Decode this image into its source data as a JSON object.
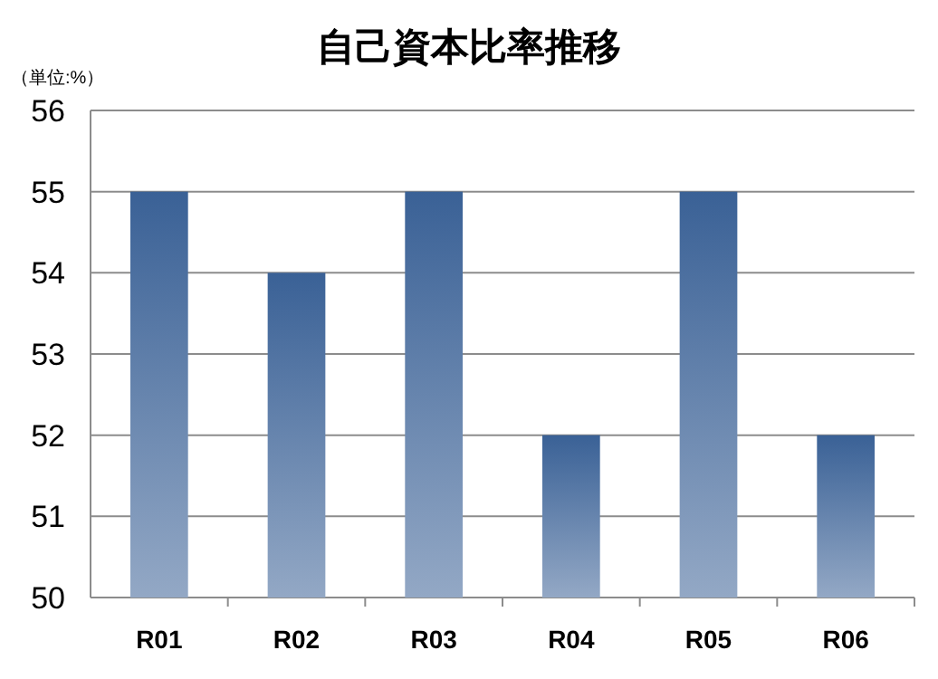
{
  "chart_data": {
    "type": "bar",
    "title": "自己資本比率推移",
    "ylabel": "（単位:%）",
    "categories": [
      "R01",
      "R02",
      "R03",
      "R04",
      "R05",
      "R06"
    ],
    "values": [
      55,
      54,
      55,
      52,
      55,
      52
    ],
    "color": "#3a6196",
    "ylim": [
      50,
      56
    ],
    "yticks": [
      50,
      51,
      52,
      53,
      54,
      55,
      56
    ],
    "grid": "y"
  }
}
